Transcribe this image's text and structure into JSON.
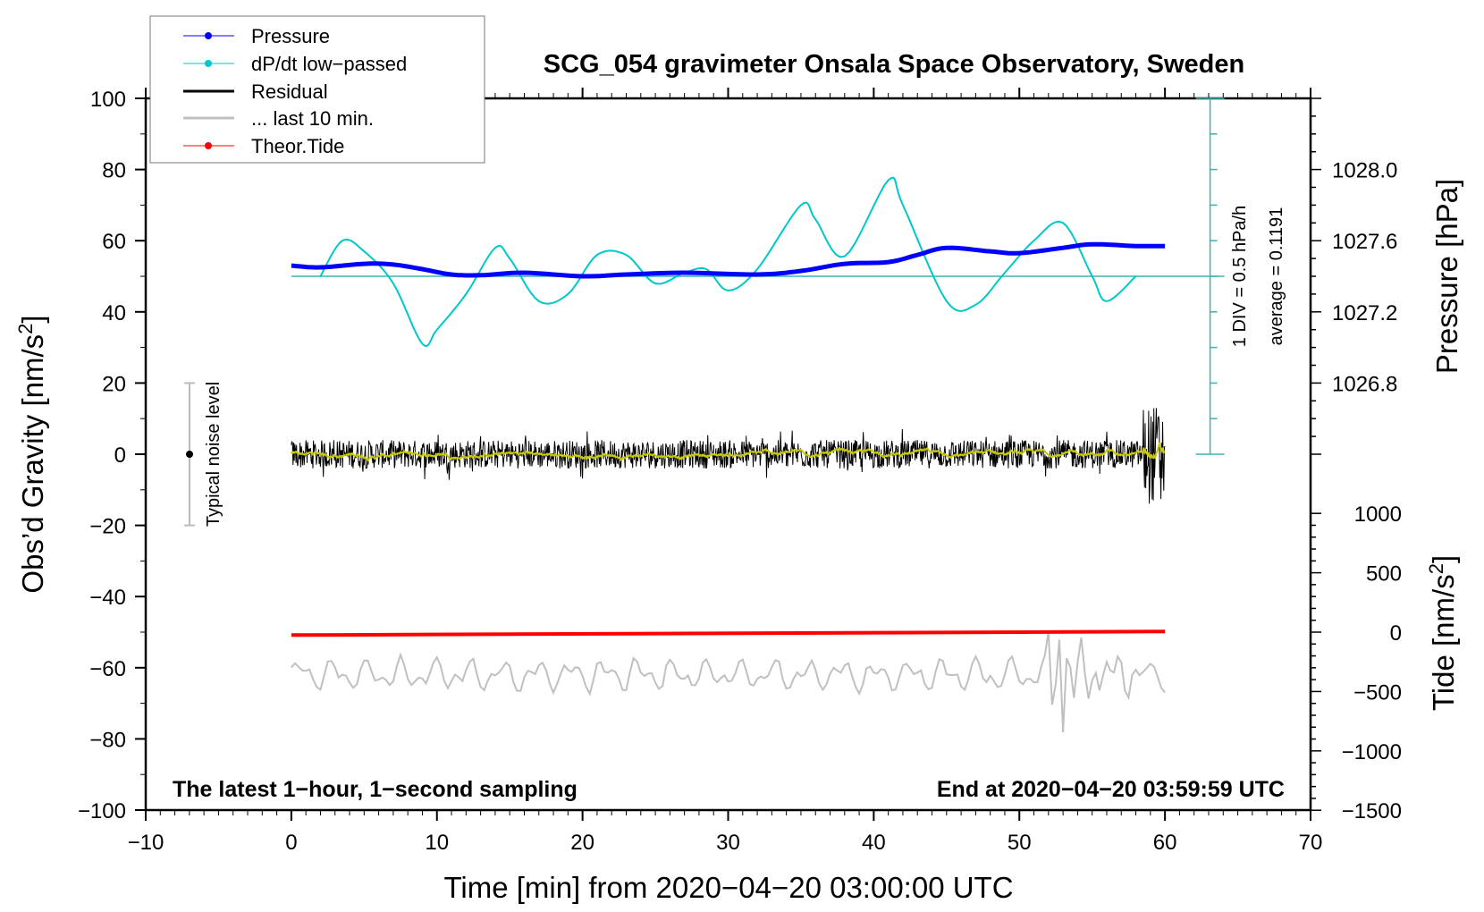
{
  "chart_data": {
    "type": "line",
    "title": "SCG_054 gravimeter Onsala Space Observatory, Sweden",
    "xlabel": "Time [min] from 2020−04−20 03:00:00 UTC",
    "ylabel": "Obs’d Gravity [nm/s",
    "ylabel_sup": "2",
    "ylabel_end": "]",
    "y2label": "Pressure [hPa]",
    "y3label": "Tide [nm/s",
    "y3label_sup": "2",
    "y3label_end": "]",
    "xlim": [
      -10,
      70
    ],
    "ylim": [
      -100,
      100
    ],
    "xticks": [
      "−10",
      "0",
      "10",
      "20",
      "30",
      "40",
      "50",
      "60",
      "70"
    ],
    "xtick_values": [
      -10,
      0,
      10,
      20,
      30,
      40,
      50,
      60,
      70
    ],
    "yticks": [
      "100",
      "80",
      "60",
      "40",
      "20",
      "0",
      "−20",
      "−40",
      "−60",
      "−80",
      "−100"
    ],
    "ytick_values": [
      100,
      80,
      60,
      40,
      20,
      0,
      -20,
      -40,
      -60,
      -80,
      -100
    ],
    "pressure_ticks": [
      "1028.0",
      "1027.6",
      "1027.2",
      "1026.8"
    ],
    "pressure_tick_values": [
      1028.0,
      1027.6,
      1027.2,
      1026.8
    ],
    "tide_ticks": [
      "1000",
      "500",
      "0",
      "−500",
      "−1000",
      "−1500"
    ],
    "tide_tick_values": [
      1000,
      500,
      0,
      -500,
      -1000,
      -1500
    ],
    "legend": {
      "position": "top-left",
      "entries": [
        "Pressure",
        "dP/dt low−passed",
        "Residual",
        "... last 10 min.",
        "Theor.Tide"
      ]
    },
    "colors": {
      "pressure": "#0000ff",
      "dpdt": "#00c8c8",
      "residual": "#000000",
      "last10": "#c0c0c0",
      "tide": "#ff0000",
      "residual_smooth": "#c8c800",
      "scale": "#40b0b0"
    },
    "scale_text": "1 DIV = 0.5 hPa/h",
    "average_text": "average = 0.1191",
    "noise_text": "Typical noise level",
    "noise_range": [
      -20,
      20
    ],
    "footer_left": "The latest 1−hour, 1−second sampling",
    "footer_right": "End at 2020−04−20 03:59:59 UTC",
    "series": [
      {
        "name": "Pressure",
        "unit": "hPa",
        "x": [
          0,
          2,
          5,
          7,
          9,
          11,
          13,
          16,
          20,
          23,
          27,
          32,
          35,
          38,
          41,
          43,
          45,
          48,
          50,
          53,
          55,
          58,
          60
        ],
        "values": [
          1027.46,
          1027.45,
          1027.47,
          1027.466,
          1027.44,
          1027.41,
          1027.406,
          1027.42,
          1027.4,
          1027.41,
          1027.42,
          1027.41,
          1027.43,
          1027.47,
          1027.48,
          1027.52,
          1027.56,
          1027.54,
          1027.53,
          1027.56,
          1027.58,
          1027.57,
          1027.57
        ]
      },
      {
        "name": "dP/dt low-passed",
        "unit": "hPa/h",
        "x": [
          2,
          3.5,
          5,
          7,
          9,
          10,
          12,
          14,
          15,
          17,
          19,
          21,
          23,
          25,
          27,
          28.5,
          30,
          32,
          35,
          36,
          38,
          41,
          42,
          45,
          47,
          49,
          51,
          53,
          55,
          56,
          58
        ],
        "values": [
          0,
          0.5,
          0.35,
          -0.1,
          -0.95,
          -0.75,
          -0.25,
          0.4,
          0.25,
          -0.35,
          -0.25,
          0.3,
          0.3,
          -0.1,
          0.05,
          0.1,
          -0.2,
          0.1,
          1.0,
          0.8,
          0.28,
          1.35,
          1.0,
          -0.35,
          -0.4,
          0.05,
          0.5,
          0.75,
          0,
          -0.35,
          0
        ]
      },
      {
        "name": "Residual",
        "unit": "nm/s2",
        "x_range": [
          0,
          60
        ],
        "typical_amplitude": 4,
        "spike_at": 59,
        "spike_range": [
          -16,
          18
        ]
      },
      {
        "name": "... last 10 min.",
        "unit": "nm/s2",
        "x_range": [
          0,
          60
        ],
        "baseline": -62,
        "quake_at": [
          52.5,
          55
        ]
      },
      {
        "name": "Theor.Tide",
        "unit": "nm/s2",
        "x": [
          0,
          60
        ],
        "values": [
          -25,
          5
        ]
      }
    ]
  }
}
